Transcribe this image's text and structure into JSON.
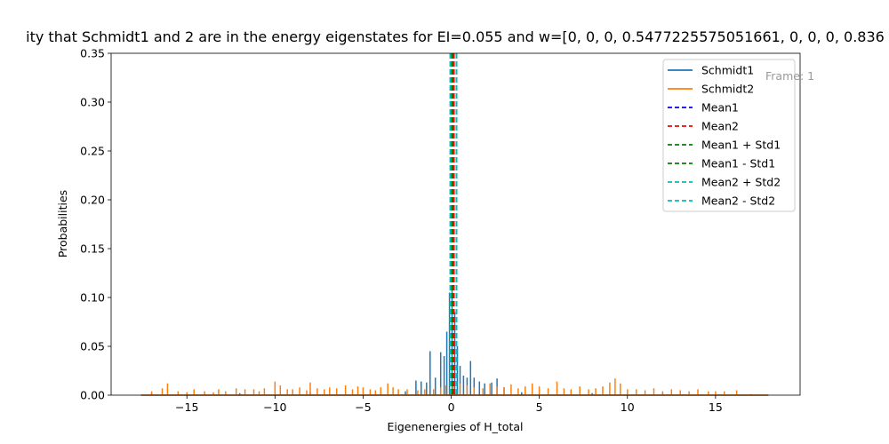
{
  "chart_data": {
    "type": "line",
    "title": "ity that Schmidt1 and 2 are in the energy eigenstates for EI=0.055 and w=[0, 0, 0, 0.5477225575051661, 0, 0, 0, 0.836",
    "xlabel": "Eigenenergies of H_total",
    "ylabel": "Probabilities",
    "xlim": [
      -19.3,
      19.8
    ],
    "ylim": [
      0,
      0.35
    ],
    "xticks": [
      -15,
      -10,
      -5,
      0,
      5,
      10,
      15
    ],
    "xtick_labels": [
      "−15",
      "−10",
      "−5",
      "0",
      "5",
      "10",
      "15"
    ],
    "yticks": [
      0.0,
      0.05,
      0.1,
      0.15,
      0.2,
      0.25,
      0.3,
      0.35
    ],
    "ytick_labels": [
      "0.00",
      "0.05",
      "0.10",
      "0.15",
      "0.20",
      "0.25",
      "0.30",
      "0.35"
    ],
    "grid": false,
    "legend_position": "top-right",
    "annotation": "Frame: 1",
    "series": [
      {
        "name": "Schmidt1",
        "color": "#1f77b4",
        "style": "solid",
        "spikes": [
          {
            "x": -17.0,
            "y": 0.002
          },
          {
            "x": -12.0,
            "y": 0.002
          },
          {
            "x": -8.0,
            "y": 0.003
          },
          {
            "x": -4.0,
            "y": 0.003
          },
          {
            "x": -2.6,
            "y": 0.004
          },
          {
            "x": -2.0,
            "y": 0.015
          },
          {
            "x": -1.7,
            "y": 0.014
          },
          {
            "x": -1.4,
            "y": 0.013
          },
          {
            "x": -1.2,
            "y": 0.045
          },
          {
            "x": -0.9,
            "y": 0.018
          },
          {
            "x": -0.6,
            "y": 0.044
          },
          {
            "x": -0.4,
            "y": 0.04
          },
          {
            "x": -0.25,
            "y": 0.065
          },
          {
            "x": -0.1,
            "y": 0.105
          },
          {
            "x": 0.05,
            "y": 0.11
          },
          {
            "x": 0.2,
            "y": 0.085
          },
          {
            "x": 0.35,
            "y": 0.05
          },
          {
            "x": 0.5,
            "y": 0.03
          },
          {
            "x": 0.7,
            "y": 0.02
          },
          {
            "x": 0.9,
            "y": 0.018
          },
          {
            "x": 1.1,
            "y": 0.035
          },
          {
            "x": 1.3,
            "y": 0.018
          },
          {
            "x": 1.6,
            "y": 0.014
          },
          {
            "x": 1.9,
            "y": 0.012
          },
          {
            "x": 2.3,
            "y": 0.013
          },
          {
            "x": 2.6,
            "y": 0.017
          },
          {
            "x": 3.0,
            "y": 0.008
          },
          {
            "x": 4.0,
            "y": 0.003
          },
          {
            "x": 8.0,
            "y": 0.002
          },
          {
            "x": 12.0,
            "y": 0.002
          },
          {
            "x": 17.0,
            "y": 0.001
          }
        ]
      },
      {
        "name": "Schmidt2",
        "color": "#ff7f0e",
        "style": "solid",
        "spikes": [
          {
            "x": -17.0,
            "y": 0.004
          },
          {
            "x": -16.4,
            "y": 0.007
          },
          {
            "x": -16.1,
            "y": 0.012
          },
          {
            "x": -15.5,
            "y": 0.004
          },
          {
            "x": -15.0,
            "y": 0.003
          },
          {
            "x": -14.6,
            "y": 0.006
          },
          {
            "x": -14.0,
            "y": 0.004
          },
          {
            "x": -13.5,
            "y": 0.003
          },
          {
            "x": -13.2,
            "y": 0.006
          },
          {
            "x": -12.8,
            "y": 0.004
          },
          {
            "x": -12.2,
            "y": 0.007
          },
          {
            "x": -11.7,
            "y": 0.006
          },
          {
            "x": -11.2,
            "y": 0.006
          },
          {
            "x": -10.9,
            "y": 0.004
          },
          {
            "x": -10.6,
            "y": 0.007
          },
          {
            "x": -10.0,
            "y": 0.014
          },
          {
            "x": -9.7,
            "y": 0.01
          },
          {
            "x": -9.3,
            "y": 0.006
          },
          {
            "x": -9.0,
            "y": 0.006
          },
          {
            "x": -8.6,
            "y": 0.008
          },
          {
            "x": -8.2,
            "y": 0.005
          },
          {
            "x": -8.0,
            "y": 0.013
          },
          {
            "x": -7.6,
            "y": 0.007
          },
          {
            "x": -7.2,
            "y": 0.006
          },
          {
            "x": -6.9,
            "y": 0.008
          },
          {
            "x": -6.5,
            "y": 0.007
          },
          {
            "x": -6.0,
            "y": 0.01
          },
          {
            "x": -5.6,
            "y": 0.006
          },
          {
            "x": -5.3,
            "y": 0.009
          },
          {
            "x": -5.0,
            "y": 0.008
          },
          {
            "x": -4.6,
            "y": 0.006
          },
          {
            "x": -4.3,
            "y": 0.005
          },
          {
            "x": -4.0,
            "y": 0.008
          },
          {
            "x": -3.6,
            "y": 0.012
          },
          {
            "x": -3.3,
            "y": 0.008
          },
          {
            "x": -3.0,
            "y": 0.006
          },
          {
            "x": -2.5,
            "y": 0.006
          },
          {
            "x": -1.9,
            "y": 0.005
          },
          {
            "x": -1.5,
            "y": 0.006
          },
          {
            "x": -1.0,
            "y": 0.006
          },
          {
            "x": -0.6,
            "y": 0.008
          },
          {
            "x": -0.3,
            "y": 0.01
          },
          {
            "x": 0.1,
            "y": 0.012
          },
          {
            "x": 0.5,
            "y": 0.012
          },
          {
            "x": 0.9,
            "y": 0.01
          },
          {
            "x": 1.3,
            "y": 0.008
          },
          {
            "x": 1.8,
            "y": 0.007
          },
          {
            "x": 2.2,
            "y": 0.012
          },
          {
            "x": 2.6,
            "y": 0.009
          },
          {
            "x": 3.0,
            "y": 0.008
          },
          {
            "x": 3.4,
            "y": 0.011
          },
          {
            "x": 3.8,
            "y": 0.007
          },
          {
            "x": 4.2,
            "y": 0.009
          },
          {
            "x": 4.6,
            "y": 0.012
          },
          {
            "x": 5.0,
            "y": 0.009
          },
          {
            "x": 5.5,
            "y": 0.007
          },
          {
            "x": 6.0,
            "y": 0.014
          },
          {
            "x": 6.4,
            "y": 0.007
          },
          {
            "x": 6.8,
            "y": 0.006
          },
          {
            "x": 7.3,
            "y": 0.009
          },
          {
            "x": 7.8,
            "y": 0.006
          },
          {
            "x": 8.2,
            "y": 0.007
          },
          {
            "x": 8.6,
            "y": 0.009
          },
          {
            "x": 9.0,
            "y": 0.013
          },
          {
            "x": 9.3,
            "y": 0.017
          },
          {
            "x": 9.6,
            "y": 0.012
          },
          {
            "x": 10.0,
            "y": 0.006
          },
          {
            "x": 10.5,
            "y": 0.006
          },
          {
            "x": 11.0,
            "y": 0.005
          },
          {
            "x": 11.5,
            "y": 0.007
          },
          {
            "x": 12.0,
            "y": 0.004
          },
          {
            "x": 12.5,
            "y": 0.006
          },
          {
            "x": 13.0,
            "y": 0.005
          },
          {
            "x": 13.5,
            "y": 0.004
          },
          {
            "x": 14.0,
            "y": 0.006
          },
          {
            "x": 14.6,
            "y": 0.004
          },
          {
            "x": 15.0,
            "y": 0.004
          },
          {
            "x": 15.5,
            "y": 0.004
          },
          {
            "x": 16.2,
            "y": 0.005
          },
          {
            "x": 17.0,
            "y": 0.001
          }
        ]
      },
      {
        "name": "Mean1",
        "color": "#0000ff",
        "style": "dashed",
        "vline": 0.15
      },
      {
        "name": "Mean2",
        "color": "#ff0000",
        "style": "dashed",
        "vline": 0.15
      },
      {
        "name": "Mean1 + Std1",
        "color": "#008000",
        "style": "dashed",
        "vline": 0.3
      },
      {
        "name": "Mean1 - Std1",
        "color": "#008000",
        "style": "dashed",
        "vline": 0.05
      },
      {
        "name": "Mean2 + Std2",
        "color": "#00bfbf",
        "style": "dashed",
        "vline": 0.3
      },
      {
        "name": "Mean2 - Std2",
        "color": "#00bfbf",
        "style": "dashed",
        "vline": -0.05
      }
    ]
  }
}
